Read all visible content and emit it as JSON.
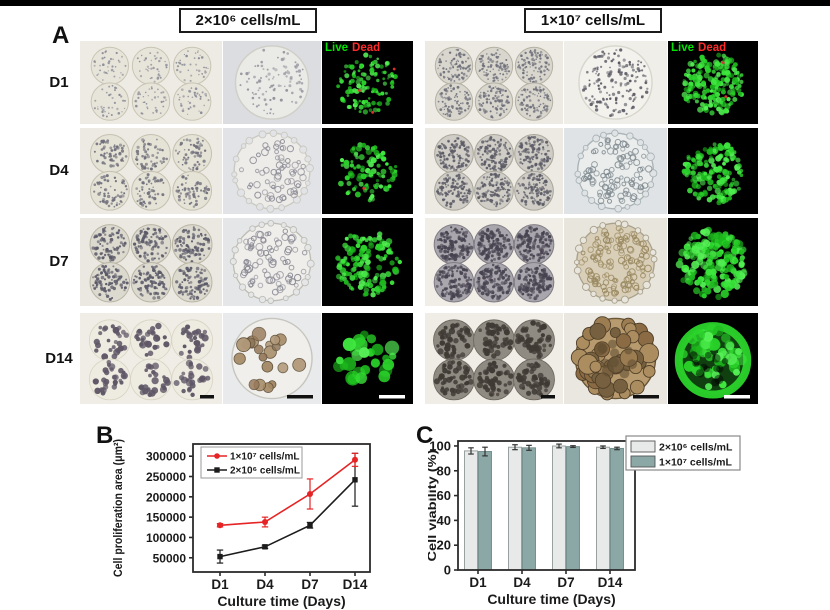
{
  "figure": {
    "panel_a_label": "A",
    "panel_b_label": "B",
    "panel_c_label": "C",
    "live_label": "Live",
    "dead_label": "Dead",
    "live_color": "#00e400",
    "dead_color": "#ff2a2a",
    "top_bar_color": "#000000"
  },
  "panel_a": {
    "row_labels": [
      "D1",
      "D4",
      "D7",
      "D14"
    ],
    "groups": [
      {
        "header": "2×10⁶ cells/mL",
        "rows": [
          {
            "day": "D1",
            "array": {
              "bg": "#edebe3",
              "drop_fill": "#e7e4d9",
              "drop_stroke": "#c9c5b5",
              "dot_color": "#8b8b97",
              "n": 38,
              "r": [
                0.6,
                1.3
              ],
              "style": "speckle"
            },
            "zoom": {
              "bg": "#dcdde1",
              "disc_fill": "#eaeae6",
              "disc_stroke": "#cfcfc7",
              "dot_color": "#95949e",
              "n": 95,
              "r": [
                0.8,
                1.7
              ],
              "style": "speckle",
              "bubbles": false
            },
            "fluor": {
              "n": 115,
              "r": [
                1.2,
                2.6
              ],
              "spread": 0.85,
              "red_n": 3,
              "style": "dots"
            }
          },
          {
            "day": "D4",
            "array": {
              "bg": "#eceae2",
              "drop_fill": "#e5e2d6",
              "drop_stroke": "#c5c1b1",
              "dot_color": "#6f6e7a",
              "n": 55,
              "r": [
                0.8,
                1.7
              ],
              "style": "speckle"
            },
            "zoom": {
              "bg": "#e2e3e6",
              "disc_fill": "#edece8",
              "disc_stroke": "#c9c9c1",
              "dot_color": "#8f8e98",
              "n": 60,
              "r": [
                1.6,
                3.4
              ],
              "style": "rings",
              "bubbles": true
            },
            "fluor": {
              "n": 90,
              "r": [
                1.5,
                3.1
              ],
              "spread": 0.8,
              "red_n": 1,
              "style": "dots"
            }
          },
          {
            "day": "D7",
            "array": {
              "bg": "#eae8e0",
              "drop_fill": "#dcd9cf",
              "drop_stroke": "#b9b5a5",
              "dot_color": "#5b5a68",
              "n": 80,
              "r": [
                0.9,
                1.8
              ],
              "style": "speckle"
            },
            "zoom": {
              "bg": "#e5e6e8",
              "disc_fill": "#efeeea",
              "disc_stroke": "#bebeb6",
              "dot_color": "#8a8994",
              "n": 75,
              "r": [
                1.8,
                3.6
              ],
              "style": "rings",
              "bubbles": true
            },
            "fluor": {
              "n": 135,
              "r": [
                1.8,
                3.4
              ],
              "spread": 0.88,
              "red_n": 0,
              "style": "dots"
            }
          },
          {
            "day": "D14",
            "array": {
              "bg": "#efede5",
              "drop_fill": "#eeebe1",
              "drop_stroke": "#d8d4c4",
              "dot_color": "#5f5766",
              "n": 26,
              "r": [
                1.8,
                3.6
              ],
              "style": "blobs",
              "scalebar": "#111111"
            },
            "zoom": {
              "bg": "#e9eaec",
              "disc_fill": "#f0efeb",
              "disc_stroke": "#c6c6be",
              "dot_color": "#a38a6b",
              "n": 20,
              "r": [
                3.5,
                7
              ],
              "style": "spheroids",
              "bubbles": false,
              "scalebar": "#111111"
            },
            "fluor": {
              "n": 26,
              "r": [
                3.5,
                7.5
              ],
              "spread": 0.8,
              "red_n": 0,
              "style": "dots",
              "scalebar": "#ffffff"
            }
          }
        ]
      },
      {
        "header": "1×10⁷ cells/mL",
        "rows": [
          {
            "day": "D1",
            "array": {
              "bg": "#eceae2",
              "drop_fill": "#d8d6cd",
              "drop_stroke": "#b4b1a4",
              "dot_color": "#70707b",
              "n": 90,
              "r": [
                0.7,
                1.4
              ],
              "style": "speckle"
            },
            "zoom": {
              "bg": "#efeee9",
              "disc_fill": "#f3f2ed",
              "disc_stroke": "#d8d6cc",
              "dot_color": "#5b5a64",
              "n": 150,
              "r": [
                0.9,
                1.7
              ],
              "style": "speckle",
              "bubbles": false
            },
            "fluor": {
              "n": 175,
              "r": [
                1.6,
                3.2
              ],
              "spread": 0.88,
              "red_n": 2,
              "style": "dots"
            }
          },
          {
            "day": "D4",
            "array": {
              "bg": "#eceae2",
              "drop_fill": "#cfcdc5",
              "drop_stroke": "#a8a69b",
              "dot_color": "#5c5b66",
              "n": 110,
              "r": [
                0.8,
                1.6
              ],
              "style": "speckle"
            },
            "zoom": {
              "bg": "#dfe3e6",
              "disc_fill": "#eaedec",
              "disc_stroke": "#aab4b6",
              "dot_color": "#7f8a90",
              "n": 95,
              "r": [
                1.6,
                3.2
              ],
              "style": "rings",
              "bubbles": true
            },
            "fluor": {
              "n": 150,
              "r": [
                1.8,
                3.4
              ],
              "spread": 0.85,
              "red_n": 0,
              "style": "dots"
            }
          },
          {
            "day": "D7",
            "array": {
              "bg": "#f0eee6",
              "drop_fill": "#aaa6ad",
              "drop_stroke": "#807c84",
              "dot_color": "#474350",
              "n": 110,
              "r": [
                1.0,
                2.0
              ],
              "style": "speckle"
            },
            "zoom": {
              "bg": "#e8e5dc",
              "disc_fill": "#d9cfb8",
              "disc_stroke": "#a9a18c",
              "dot_color": "#99885f",
              "n": 120,
              "r": [
                1.8,
                3.4
              ],
              "style": "rings",
              "bubbles": true
            },
            "fluor": {
              "n": 180,
              "r": [
                2.2,
                4.2
              ],
              "spread": 0.92,
              "red_n": 0,
              "style": "dots"
            }
          },
          {
            "day": "D14",
            "array": {
              "bg": "#efede5",
              "drop_fill": "#8f8a82",
              "drop_stroke": "#6a655d",
              "dot_color": "#3f3a34",
              "n": 45,
              "r": [
                1.6,
                3.2
              ],
              "style": "blobs",
              "scalebar": "#111111"
            },
            "zoom": {
              "bg": "#e9e7e0",
              "disc_fill": "#b79a6d",
              "disc_stroke": "#6b5636",
              "dot_color": "#8a6b44",
              "n": 30,
              "r": [
                5,
                10
              ],
              "style": "cluster",
              "scalebar": "#111111"
            },
            "fluor": {
              "n": 45,
              "r": [
                3,
                6.5
              ],
              "spread": 0.8,
              "red_n": 0,
              "style": "ring",
              "scalebar": "#ffffff"
            }
          }
        ]
      }
    ]
  },
  "chart_data": [
    {
      "type": "line",
      "panel": "B",
      "categories": [
        "D1",
        "D4",
        "D7",
        "D14"
      ],
      "series": [
        {
          "name": "1×10⁷ cells/mL",
          "color": "#e62325",
          "marker": "circle",
          "values": [
            130000,
            138000,
            207000,
            291000
          ],
          "errors": [
            4000,
            12000,
            37000,
            16000
          ]
        },
        {
          "name": "2×10⁶ cells/mL",
          "color": "#1c1c1c",
          "marker": "square",
          "values": [
            53000,
            77000,
            130000,
            242000
          ],
          "errors": [
            16000,
            4000,
            7000,
            65000
          ]
        }
      ],
      "xlabel": "Culture time (Days)",
      "ylabel": "Cell proliferation area (μm²)",
      "ylim": [
        15000,
        330000
      ],
      "yticks": [
        50000,
        100000,
        150000,
        200000,
        250000,
        300000
      ],
      "legend_position": "top-left",
      "grid": false
    },
    {
      "type": "bar",
      "panel": "C",
      "categories": [
        "D1",
        "D4",
        "D7",
        "D14"
      ],
      "series": [
        {
          "name": "2×10⁶ cells/mL",
          "color": "#e8eae9",
          "stroke": "#8f9797",
          "values": [
            96,
            99,
            100,
            99
          ],
          "errors": [
            2.5,
            2,
            1.5,
            1
          ]
        },
        {
          "name": "1×10⁷ cells/mL",
          "color": "#8ba8a7",
          "stroke": "#6e8a89",
          "values": [
            95.5,
            98.5,
            99.5,
            98
          ],
          "errors": [
            3.5,
            2,
            0.7,
            1
          ]
        }
      ],
      "xlabel": "Culture time (Days)",
      "ylabel": "Cell viability (%)",
      "ylim": [
        0,
        104
      ],
      "yticks": [
        0,
        20,
        40,
        60,
        80,
        100
      ],
      "legend_position": "outside-right",
      "grid": false
    }
  ]
}
